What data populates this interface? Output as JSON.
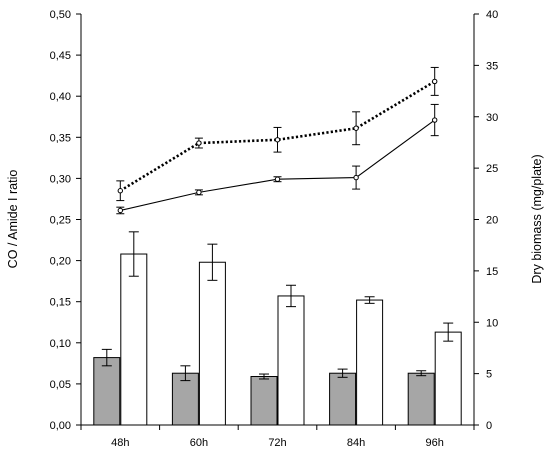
{
  "chart_data": {
    "type": "bar+line",
    "categories": [
      "48h",
      "60h",
      "72h",
      "84h",
      "96h"
    ],
    "y_left": {
      "label": "CO / Amide I ratio",
      "lim": [
        0,
        0.5
      ],
      "ticks": [
        "0,00",
        "0,05",
        "0,10",
        "0,15",
        "0,20",
        "0,25",
        "0,30",
        "0,35",
        "0,40",
        "0,45",
        "0,50"
      ]
    },
    "y_right": {
      "label": "Dry biomass (mg/plate)",
      "lim": [
        0,
        40
      ],
      "ticks": [
        "0",
        "5",
        "10",
        "15",
        "20",
        "25",
        "30",
        "35",
        "40"
      ]
    },
    "bar_series": [
      {
        "axis": "left",
        "color": "#a6a6a6",
        "values": [
          0.082,
          0.063,
          0.059,
          0.063,
          0.063
        ],
        "errors": [
          0.01,
          0.009,
          0.003,
          0.005,
          0.003
        ]
      },
      {
        "axis": "left",
        "color": "#ffffff",
        "values": [
          0.208,
          0.198,
          0.157,
          0.152,
          0.113
        ],
        "errors": [
          0.027,
          0.022,
          0.013,
          0.004,
          0.011
        ]
      }
    ],
    "line_series": [
      {
        "axis": "left",
        "style": "dotted",
        "values": [
          0.285,
          0.343,
          0.347,
          0.361,
          0.418
        ],
        "errors": [
          0.012,
          0.006,
          0.015,
          0.02,
          0.017
        ]
      },
      {
        "axis": "left",
        "style": "solid",
        "values": [
          0.261,
          0.283,
          0.299,
          0.301,
          0.371
        ],
        "errors": [
          0.004,
          0.003,
          0.003,
          0.014,
          0.019
        ]
      }
    ],
    "grid": false,
    "legend": "none"
  }
}
